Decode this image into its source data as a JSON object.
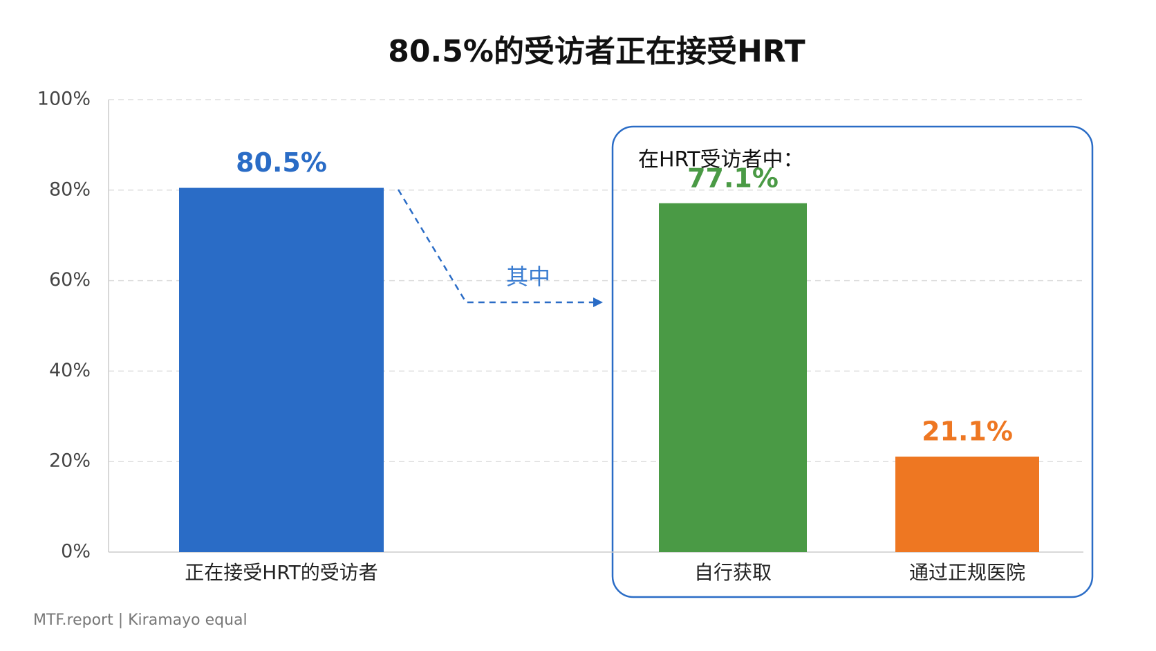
{
  "chart_data": {
    "type": "bar",
    "title": "80.5%的受访者正在接受HRT",
    "categories": [
      "正在接受HRT的受访者",
      "自行获取",
      "通过正规医院"
    ],
    "values": [
      80.5,
      77.1,
      21.1
    ],
    "value_labels": [
      "80.5%",
      "77.1%",
      "21.1%"
    ],
    "colors": [
      "#2a6cc6",
      "#4a9a45",
      "#ee7722"
    ],
    "ylim": [
      0,
      100
    ],
    "yticks": [
      {
        "value": 0,
        "label": "0%"
      },
      {
        "value": 20,
        "label": "20%"
      },
      {
        "value": 40,
        "label": "40%"
      },
      {
        "value": 60,
        "label": "60%"
      },
      {
        "value": 80,
        "label": "80%"
      },
      {
        "value": 100,
        "label": "100%"
      }
    ],
    "grid": true,
    "annotations": [
      "其中",
      "在HRT受访者中："
    ],
    "source": "MTF.report  |  Kiramayo equal"
  }
}
